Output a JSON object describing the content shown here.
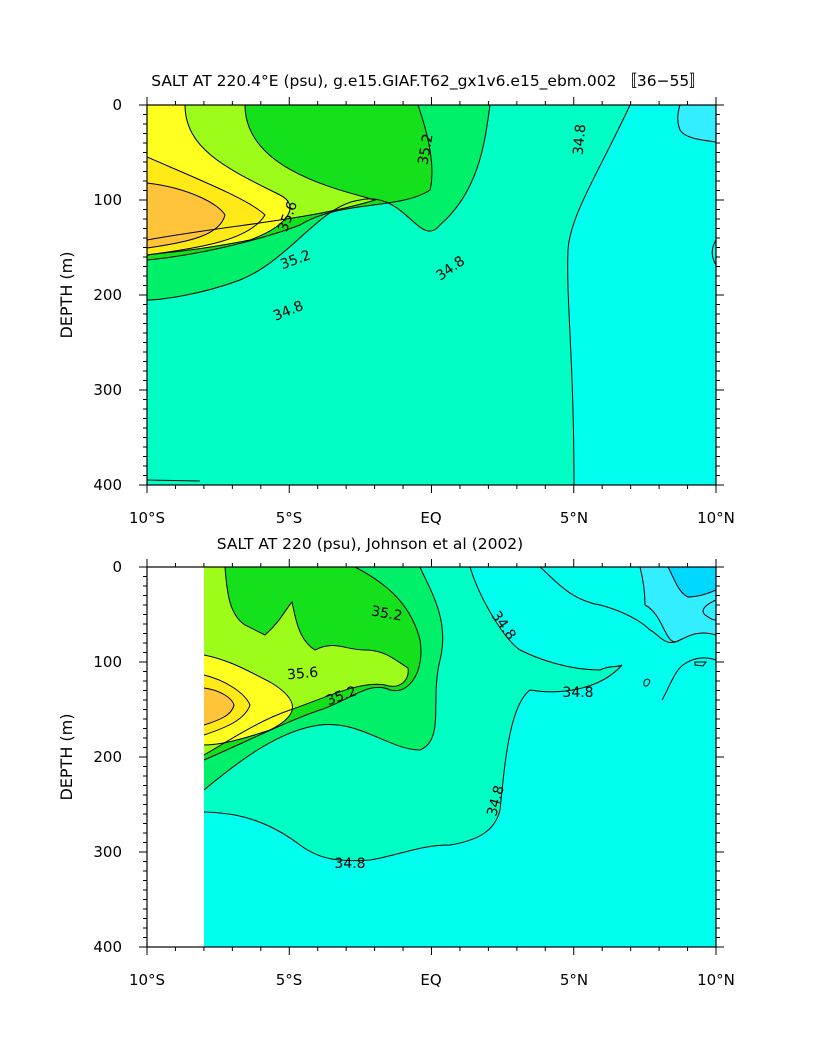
{
  "colors": {
    "lt_34_8": "#00ffee",
    "c34_8_35_0": "#00ffc4",
    "c35_0_35_2": "#00f06a",
    "c35_2_35_4": "#14e01c",
    "c35_4_35_6": "#9dfc1a",
    "c35_6_35_8": "#ffff20",
    "c35_8_36_0": "#ffea18",
    "gt_36_0": "#ffc43a",
    "light_cyan": "#33eeff",
    "deep_cyan": "#00d8ff",
    "missing": "#ffffff",
    "contour": "#000000"
  },
  "chart_data": [
    {
      "type": "contour",
      "title": "SALT AT 220.4°E (psu), g.e15.GIAF.T62_gx1v6.e15_ebm.002 〚36−55〛",
      "xlabel": "",
      "ylabel": "DEPTH (m)",
      "xlim": [
        -10,
        10
      ],
      "ylim": [
        400,
        0
      ],
      "x_ticks": [
        "10°S",
        "5°S",
        "EQ",
        "5°N",
        "10°N"
      ],
      "y_ticks": [
        "0",
        "100",
        "200",
        "300",
        "400"
      ],
      "contour_labels": [
        "35.6",
        "35.2",
        "35.2",
        "34.8",
        "34.8",
        "34.8"
      ],
      "contour_levels": [
        34.8,
        35.0,
        35.2,
        35.4,
        35.6,
        35.8,
        36.0
      ],
      "data_coverage_lat": [
        -10,
        10
      ]
    },
    {
      "type": "contour",
      "title": "SALT AT 220 (psu), Johnson et al (2002)",
      "xlabel": "",
      "ylabel": "DEPTH (m)",
      "xlim": [
        -10,
        10
      ],
      "ylim": [
        400,
        0
      ],
      "x_ticks": [
        "10°S",
        "5°S",
        "EQ",
        "5°N",
        "10°N"
      ],
      "y_ticks": [
        "0",
        "100",
        "200",
        "300",
        "400"
      ],
      "contour_labels": [
        "35.6",
        "35.2",
        "35.2",
        "34.8",
        "34.8",
        "34.8",
        "34.8"
      ],
      "contour_levels": [
        34.8,
        35.0,
        35.2,
        35.4,
        35.6,
        35.8,
        36.0
      ],
      "data_coverage_lat": [
        -8,
        10
      ]
    }
  ]
}
